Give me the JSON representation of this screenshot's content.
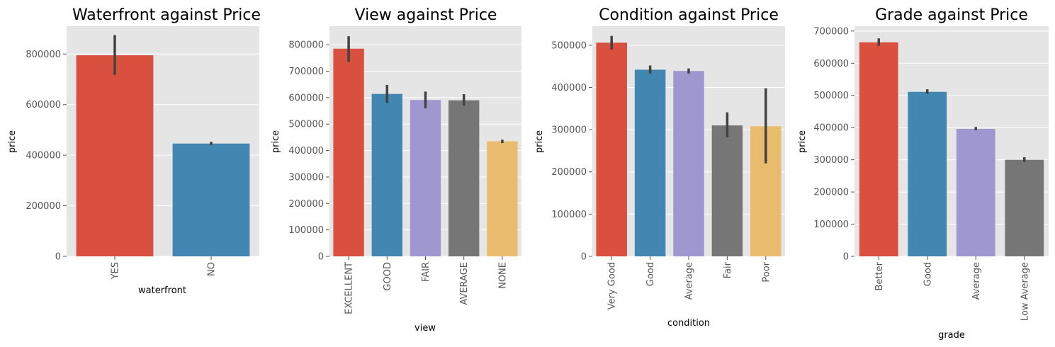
{
  "palette": [
    "#d9513e",
    "#4287b1",
    "#9f98d0",
    "#767676",
    "#e9bb6c"
  ],
  "chart_data": [
    {
      "type": "bar",
      "title": "Waterfront against Price",
      "xlabel": "waterfront",
      "ylabel": "price",
      "categories": [
        "YES",
        "NO"
      ],
      "values": [
        795000,
        446000
      ],
      "ci_low": [
        718000,
        440000
      ],
      "ci_high": [
        875000,
        453000
      ],
      "ylim": [
        0,
        910000
      ],
      "yticks": [
        0,
        200000,
        400000,
        600000,
        800000
      ],
      "ytick_labels": [
        "0",
        "200000",
        "400000",
        "600000",
        "800000"
      ],
      "grid": true
    },
    {
      "type": "bar",
      "title": "View against Price",
      "xlabel": "view",
      "ylabel": "price",
      "categories": [
        "EXCELLENT",
        "GOOD",
        "FAIR",
        "AVERAGE",
        "NONE"
      ],
      "values": [
        785000,
        614000,
        591000,
        590000,
        435000
      ],
      "ci_low": [
        735000,
        580000,
        560000,
        570000,
        428000
      ],
      "ci_high": [
        832000,
        648000,
        623000,
        613000,
        441000
      ],
      "ylim": [
        0,
        870000
      ],
      "yticks": [
        0,
        100000,
        200000,
        300000,
        400000,
        500000,
        600000,
        700000,
        800000
      ],
      "ytick_labels": [
        "0",
        "100000",
        "200000",
        "300000",
        "400000",
        "500000",
        "600000",
        "700000",
        "800000"
      ],
      "grid": true
    },
    {
      "type": "bar",
      "title": "Condition against Price",
      "xlabel": "condition",
      "ylabel": "price",
      "categories": [
        "Very Good",
        "Good",
        "Average",
        "Fair",
        "Poor"
      ],
      "values": [
        506000,
        442000,
        439000,
        310000,
        308000
      ],
      "ci_low": [
        490000,
        433000,
        433000,
        282000,
        220000
      ],
      "ci_high": [
        522000,
        452000,
        445000,
        341000,
        398000
      ],
      "ylim": [
        0,
        545000
      ],
      "yticks": [
        0,
        100000,
        200000,
        300000,
        400000,
        500000
      ],
      "ytick_labels": [
        "0",
        "100000",
        "200000",
        "300000",
        "400000",
        "500000"
      ],
      "grid": true
    },
    {
      "type": "bar",
      "title": "Grade against Price",
      "xlabel": "grade",
      "ylabel": "price",
      "categories": [
        "Better",
        "Good",
        "Average",
        "Low Average"
      ],
      "values": [
        665000,
        511000,
        396000,
        300000
      ],
      "ci_low": [
        654000,
        505000,
        392000,
        293000
      ],
      "ci_high": [
        677000,
        519000,
        402000,
        308000
      ],
      "ylim": [
        0,
        715000
      ],
      "yticks": [
        0,
        100000,
        200000,
        300000,
        400000,
        500000,
        600000,
        700000
      ],
      "ytick_labels": [
        "0",
        "100000",
        "200000",
        "300000",
        "400000",
        "500000",
        "600000",
        "700000"
      ],
      "grid": true
    }
  ]
}
